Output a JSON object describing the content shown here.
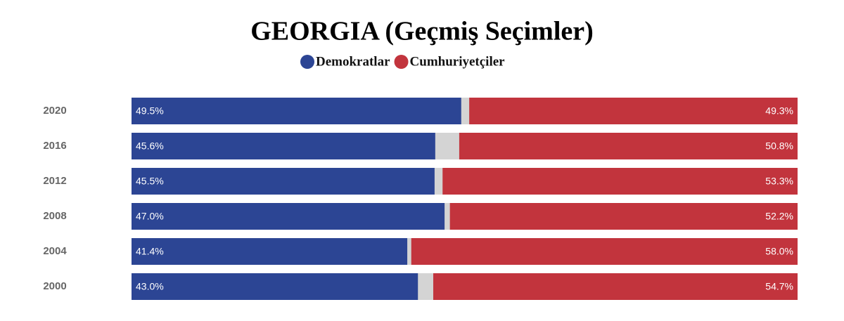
{
  "chart_data": {
    "type": "bar",
    "orientation": "horizontal",
    "title": "GEORGIA (Geçmiş Seçimler)",
    "categories": [
      "2020",
      "2016",
      "2012",
      "2008",
      "2004",
      "2000"
    ],
    "series": [
      {
        "name": "Demokratlar",
        "color": "#2c4594",
        "values": [
          49.5,
          45.6,
          45.5,
          47.0,
          41.4,
          43.0
        ],
        "value_labels": [
          "49.5%",
          "45.6%",
          "45.5%",
          "47.0%",
          "41.4%",
          "43.0%"
        ]
      },
      {
        "name": "Cumhuriyetçiler",
        "color": "#c2343d",
        "values": [
          49.3,
          50.8,
          53.3,
          52.2,
          58.0,
          54.7
        ],
        "value_labels": [
          "49.3%",
          "50.8%",
          "53.3%",
          "52.2%",
          "58.0%",
          "54.7%"
        ]
      }
    ],
    "xlim": [
      0,
      100
    ]
  }
}
